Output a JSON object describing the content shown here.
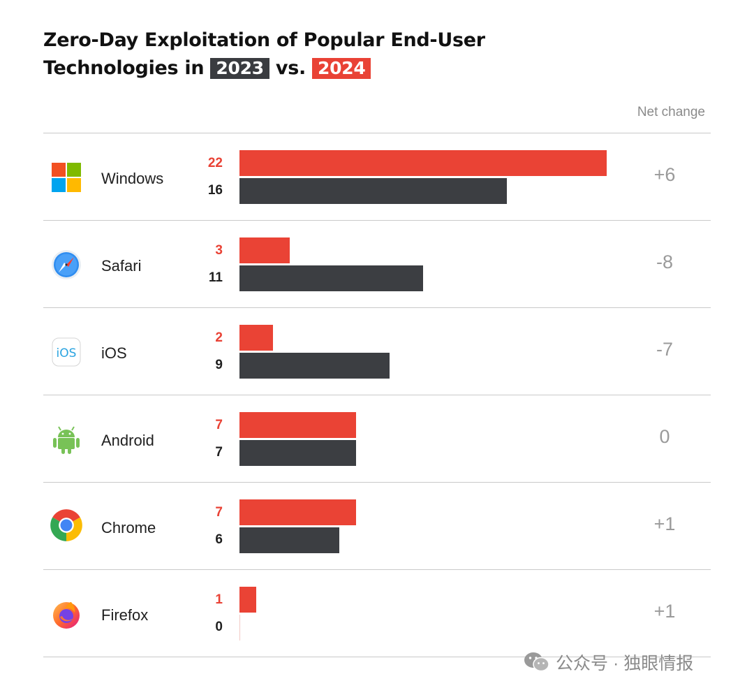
{
  "header": {
    "title_line1": "Zero-Day Exploitation of Popular End-User",
    "title_line2_prefix": "Technologies in",
    "year_a": "2023",
    "title_vs": "vs.",
    "year_b": "2024",
    "net_change_label": "Net change"
  },
  "colors": {
    "series_2024": "#ea4335",
    "series_2023": "#3c3e42"
  },
  "chart_data": {
    "type": "bar",
    "orientation": "horizontal",
    "title": "Zero-Day Exploitation of Popular End-User Technologies in 2023 vs. 2024",
    "categories": [
      "Windows",
      "Safari",
      "iOS",
      "Android",
      "Chrome",
      "Firefox"
    ],
    "series": [
      {
        "name": "2024",
        "values": [
          22,
          3,
          2,
          7,
          7,
          1
        ]
      },
      {
        "name": "2023",
        "values": [
          16,
          11,
          9,
          7,
          6,
          0
        ]
      }
    ],
    "net_change": [
      "+6",
      "-8",
      "-7",
      "0",
      "+1",
      "+1"
    ],
    "xlim": [
      0,
      22
    ],
    "grid": false,
    "legend": "in title"
  },
  "rows": [
    {
      "label": "Windows",
      "icon": "windows-icon",
      "v2024": "22",
      "v2023": "16",
      "net": "+6"
    },
    {
      "label": "Safari",
      "icon": "safari-icon",
      "v2024": "3",
      "v2023": "11",
      "net": "-8"
    },
    {
      "label": "iOS",
      "icon": "ios-icon",
      "v2024": "2",
      "v2023": "9",
      "net": "-7"
    },
    {
      "label": "Android",
      "icon": "android-icon",
      "v2024": "7",
      "v2023": "7",
      "net": "0"
    },
    {
      "label": "Chrome",
      "icon": "chrome-icon",
      "v2024": "7",
      "v2023": "6",
      "net": "+1"
    },
    {
      "label": "Firefox",
      "icon": "firefox-icon",
      "v2024": "1",
      "v2023": "0",
      "net": "+1"
    }
  ],
  "watermark": {
    "text": "公众号 · 独眼情报",
    "icon": "wechat-icon"
  }
}
